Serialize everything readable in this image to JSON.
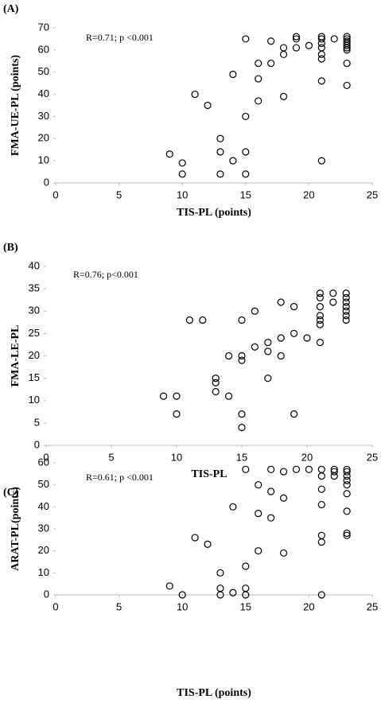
{
  "chart_data": [
    {
      "type": "scatter",
      "label": "(A)",
      "annotation": "R=0.71; p <0.001",
      "x_label": "TIS-PL (points)",
      "y_label": "FMA-UE-PL (points)",
      "xlim": [
        0,
        25
      ],
      "xticks": [
        0,
        5,
        10,
        15,
        20,
        25
      ],
      "ylim": [
        0,
        70
      ],
      "yticks": [
        0,
        10,
        20,
        30,
        40,
        50,
        60,
        70
      ],
      "color": "#000000",
      "x": [
        9,
        10,
        10,
        11,
        12,
        13,
        13,
        13,
        14,
        14,
        15,
        15,
        15,
        15,
        16,
        16,
        16,
        17,
        17,
        18,
        18,
        18,
        19,
        19,
        19,
        20,
        21,
        21,
        21,
        21,
        21,
        21,
        21,
        21,
        22,
        23,
        23,
        23,
        23,
        23,
        23,
        23,
        23,
        23
      ],
      "y": [
        13,
        9,
        4,
        40,
        35,
        20,
        14,
        4,
        10,
        49,
        65,
        30,
        14,
        4,
        54,
        47,
        37,
        64,
        54,
        61,
        58,
        39,
        66,
        65,
        61,
        62,
        66,
        65,
        63,
        61,
        58,
        56,
        46,
        10,
        65,
        66,
        65,
        64,
        63,
        62,
        61,
        60,
        54,
        44
      ]
    },
    {
      "type": "scatter",
      "label": "(B)",
      "annotation": "R=0.76; p<0.001",
      "x_label": "TIS-PL",
      "y_label": "FMA-LE-PL",
      "xlim": [
        0,
        25
      ],
      "xticks": [
        0,
        5,
        10,
        15,
        20,
        25
      ],
      "ylim": [
        0,
        40
      ],
      "yticks": [
        0,
        5,
        10,
        15,
        20,
        25,
        30,
        35,
        40
      ],
      "color": "#000000",
      "x": [
        9,
        10,
        10,
        11,
        12,
        13,
        13,
        13,
        14,
        14,
        15,
        15,
        15,
        15,
        15,
        16,
        16,
        17,
        17,
        17,
        18,
        18,
        18,
        19,
        19,
        19,
        20,
        21,
        21,
        21,
        21,
        21,
        21,
        21,
        22,
        22,
        23,
        23,
        23,
        23,
        23,
        23,
        23
      ],
      "y": [
        11,
        11,
        7,
        28,
        28,
        15,
        14,
        12,
        20,
        11,
        28,
        20,
        19,
        7,
        4,
        30,
        22,
        23,
        21,
        15,
        32,
        24,
        20,
        31,
        25,
        7,
        24,
        34,
        33,
        31,
        29,
        28,
        27,
        23,
        34,
        32,
        34,
        33,
        32,
        31,
        30,
        29,
        28
      ]
    },
    {
      "type": "scatter",
      "label": "(C)",
      "annotation": "R=0.61; p <0.001",
      "x_label": "TIS-PL (points)",
      "y_label": "ARAT-PL(points)",
      "xlim": [
        0,
        25
      ],
      "xticks": [
        0,
        5,
        10,
        15,
        20,
        25
      ],
      "ylim": [
        0,
        60
      ],
      "yticks": [
        0,
        10,
        20,
        30,
        40,
        50,
        60
      ],
      "color": "#000000",
      "x": [
        9,
        10,
        11,
        12,
        13,
        13,
        13,
        14,
        14,
        15,
        15,
        15,
        15,
        16,
        16,
        16,
        17,
        17,
        17,
        18,
        18,
        18,
        19,
        20,
        21,
        21,
        21,
        21,
        21,
        21,
        21,
        22,
        22,
        22,
        23,
        23,
        23,
        23,
        23,
        23,
        23,
        23,
        23
      ],
      "y": [
        4,
        0,
        26,
        23,
        10,
        3,
        0,
        40,
        1,
        57,
        13,
        3,
        0,
        50,
        37,
        20,
        57,
        47,
        35,
        56,
        44,
        19,
        57,
        57,
        57,
        54,
        48,
        41,
        27,
        24,
        0,
        57,
        56,
        54,
        57,
        56,
        54,
        52,
        50,
        46,
        38,
        28,
        27
      ]
    }
  ]
}
